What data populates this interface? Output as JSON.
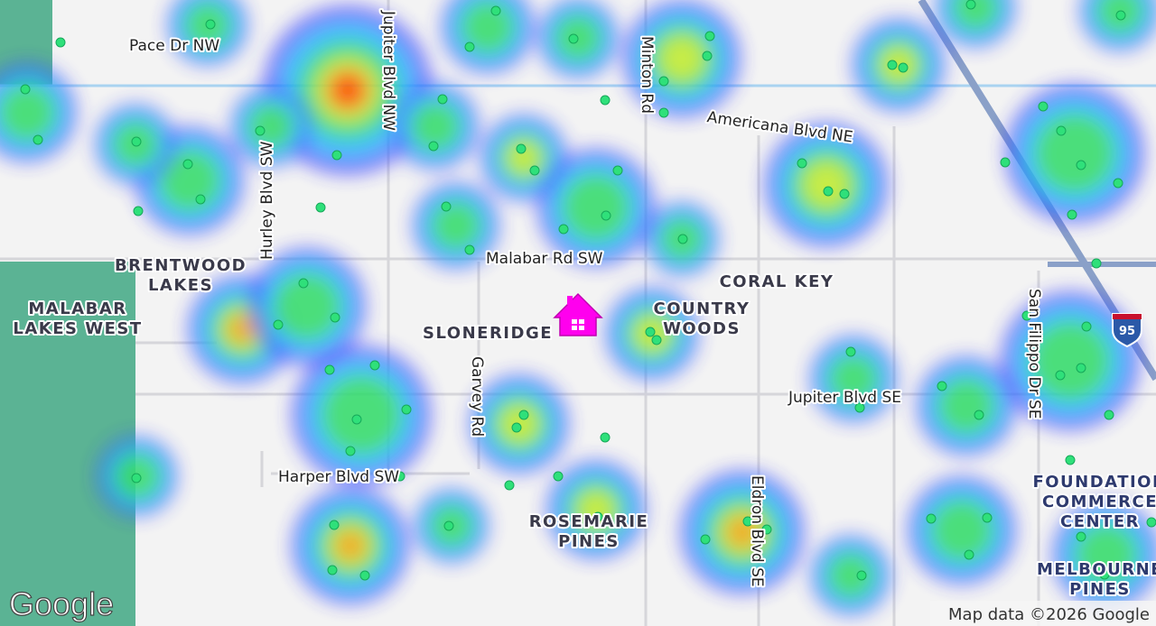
{
  "map": {
    "roads": [
      "Pace Dr NW",
      "Jupiter Blvd NW",
      "Minton Rd",
      "Americana Blvd NE",
      "Malabar Rd SW",
      "Hurley Blvd SW",
      "Garvey Rd",
      "Jupiter Blvd SE",
      "Harper Blvd SW",
      "Eldron Blvd SE",
      "San Filippo Dr SE"
    ],
    "areas": [
      [
        "BRENTWOOD",
        "LAKES"
      ],
      [
        "MALABAR",
        "LAKES WEST"
      ],
      [
        "SLONERIDGE"
      ],
      [
        "CORAL KEY"
      ],
      [
        "COUNTRY",
        "WOODS"
      ],
      [
        "ROSEMARIE",
        "PINES"
      ],
      [
        "FOUNDATION",
        "COMMERCE",
        "CENTER"
      ],
      [
        "MELBOURNE",
        "PINES"
      ]
    ],
    "highway_shield": "95",
    "logo": "Google",
    "attribution": "Map data ©2026 Google"
  }
}
